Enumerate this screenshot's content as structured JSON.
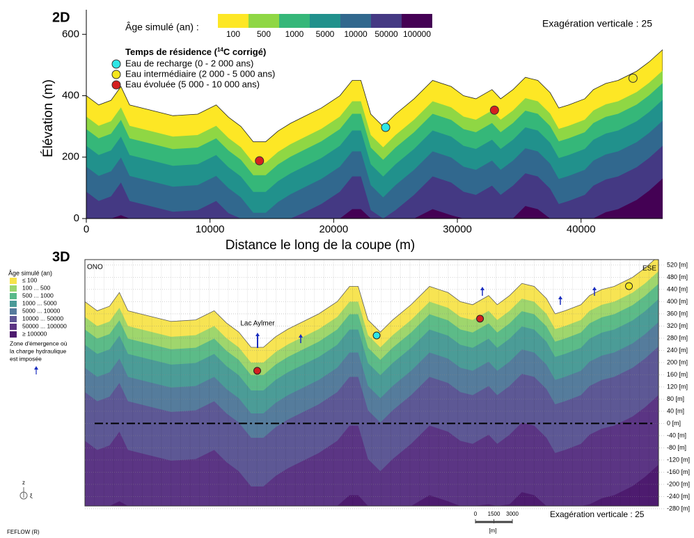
{
  "chart_data": [
    {
      "type": "scatter",
      "label": "2D",
      "xlabel": "Distance le long de la coupe (m)",
      "ylabel": "Élévation (m)",
      "xlim": [
        0,
        46600
      ],
      "ylim": [
        0,
        680
      ],
      "xticks": [
        0,
        10000,
        20000,
        30000,
        40000
      ],
      "yticks": [
        0,
        200,
        400,
        600
      ],
      "colorbar": {
        "title": "Âge simulé (an) :",
        "labels": [
          100,
          500,
          1000,
          5000,
          10000,
          50000,
          100000
        ],
        "colors": [
          "#fde725",
          "#8fd744",
          "#35b779",
          "#21918c",
          "#31688e",
          "#443983",
          "#440154"
        ]
      },
      "legend_title": [
        "Temps de résidence (",
        "14",
        "C corrigé)"
      ],
      "series": [
        {
          "name": "Eau de recharge (0 - 2 000 ans)",
          "color": "#2ee6e6",
          "x": [
            24200
          ],
          "values": [
            297
          ]
        },
        {
          "name": "Eau intermédiaire (2 000 - 5 000 ans)",
          "color": "#f5e61e",
          "x": [
            44200
          ],
          "values": [
            457
          ]
        },
        {
          "name": "Eau évoluée (5 000 - 10 000 ans)",
          "color": "#d42020",
          "x": [
            14000,
            33000
          ],
          "values": [
            188,
            353
          ]
        }
      ],
      "surface": {
        "x": [
          0,
          1000,
          2000,
          2800,
          3500,
          5000,
          7000,
          9000,
          10500,
          11500,
          12500,
          13500,
          14500,
          15500,
          16500,
          17500,
          19000,
          20500,
          21500,
          22200,
          23000,
          24000,
          25000,
          26500,
          28000,
          29500,
          30500,
          31500,
          32800,
          33500,
          34500,
          35500,
          36500,
          37500,
          38200,
          39000,
          40300,
          41000,
          42000,
          43000,
          44500,
          45500,
          46600
        ],
        "values": [
          400,
          370,
          385,
          430,
          370,
          355,
          335,
          340,
          370,
          330,
          300,
          250,
          250,
          285,
          310,
          330,
          360,
          400,
          450,
          450,
          340,
          300,
          340,
          390,
          450,
          430,
          400,
          390,
          420,
          390,
          420,
          460,
          450,
          410,
          360,
          370,
          390,
          420,
          440,
          450,
          480,
          510,
          550
        ]
      },
      "annotation": "Exagération verticale : 25"
    },
    {
      "type": "scatter",
      "label": "3D",
      "ylim": [
        -271,
        538
      ],
      "yticks": [
        {
          "value": 520,
          "label": "520 [m]"
        },
        {
          "value": 480,
          "label": "480 [m]"
        },
        {
          "value": 440,
          "label": "440 [m]"
        },
        {
          "value": 400,
          "label": "400 [m]"
        },
        {
          "value": 360,
          "label": "360 [m]"
        },
        {
          "value": 320,
          "label": "320 [m]"
        },
        {
          "value": 280,
          "label": "280 [m]"
        },
        {
          "value": 240,
          "label": "240 [m]"
        },
        {
          "value": 200,
          "label": "200 [m]"
        },
        {
          "value": 160,
          "label": "160 [m]"
        },
        {
          "value": 120,
          "label": "120 [m]"
        },
        {
          "value": 80,
          "label": "80 [m]"
        },
        {
          "value": 40,
          "label": "40 [m]"
        },
        {
          "value": 0,
          "label": "0 [m]"
        },
        {
          "value": -40,
          "label": "-40 [m]"
        },
        {
          "value": -80,
          "label": "-80 [m]"
        },
        {
          "value": -120,
          "label": "-120 [m]"
        },
        {
          "value": -160,
          "label": "-160 [m]"
        },
        {
          "value": -200,
          "label": "-200 [m]"
        },
        {
          "value": -240,
          "label": "-240 [m]"
        },
        {
          "value": -280,
          "label": "-280 [m]"
        }
      ],
      "legend_title": "Âge simulé (an)",
      "legend": [
        "≤ 100",
        "100 ... 500",
        "500 ... 1000",
        "1000 ... 5000",
        "5000 ... 10000",
        "10000 ... 50000",
        "50000 ... 100000",
        "≥ 100000"
      ],
      "colors": [
        "#f7e34a",
        "#9ad56f",
        "#58b98a",
        "#4a9a98",
        "#557a9c",
        "#5e5695",
        "#5b3483",
        "#4d1a6e"
      ],
      "note": [
        "Zone d'émergence où",
        "la charge hydraulique",
        "est imposée"
      ],
      "left_label": "ONO",
      "right_label": "ESE",
      "lake": "Lac Aylmer",
      "scalebar": {
        "ticks": [
          0,
          1500,
          3000
        ],
        "unit": "[m]"
      },
      "annotation": "Exagération verticale : 25",
      "software": "FEFLOW (R)",
      "axis_labels": [
        "z",
        "ξ"
      ],
      "series": [
        {
          "color": "#2ee6e6",
          "x": [
            23700
          ],
          "values": [
            289
          ]
        },
        {
          "color": "#f5e61e",
          "x": [
            44200
          ],
          "values": [
            451
          ]
        },
        {
          "color": "#d42020",
          "x": [
            14000,
            32100
          ],
          "values": [
            173,
            344
          ]
        }
      ]
    }
  ]
}
